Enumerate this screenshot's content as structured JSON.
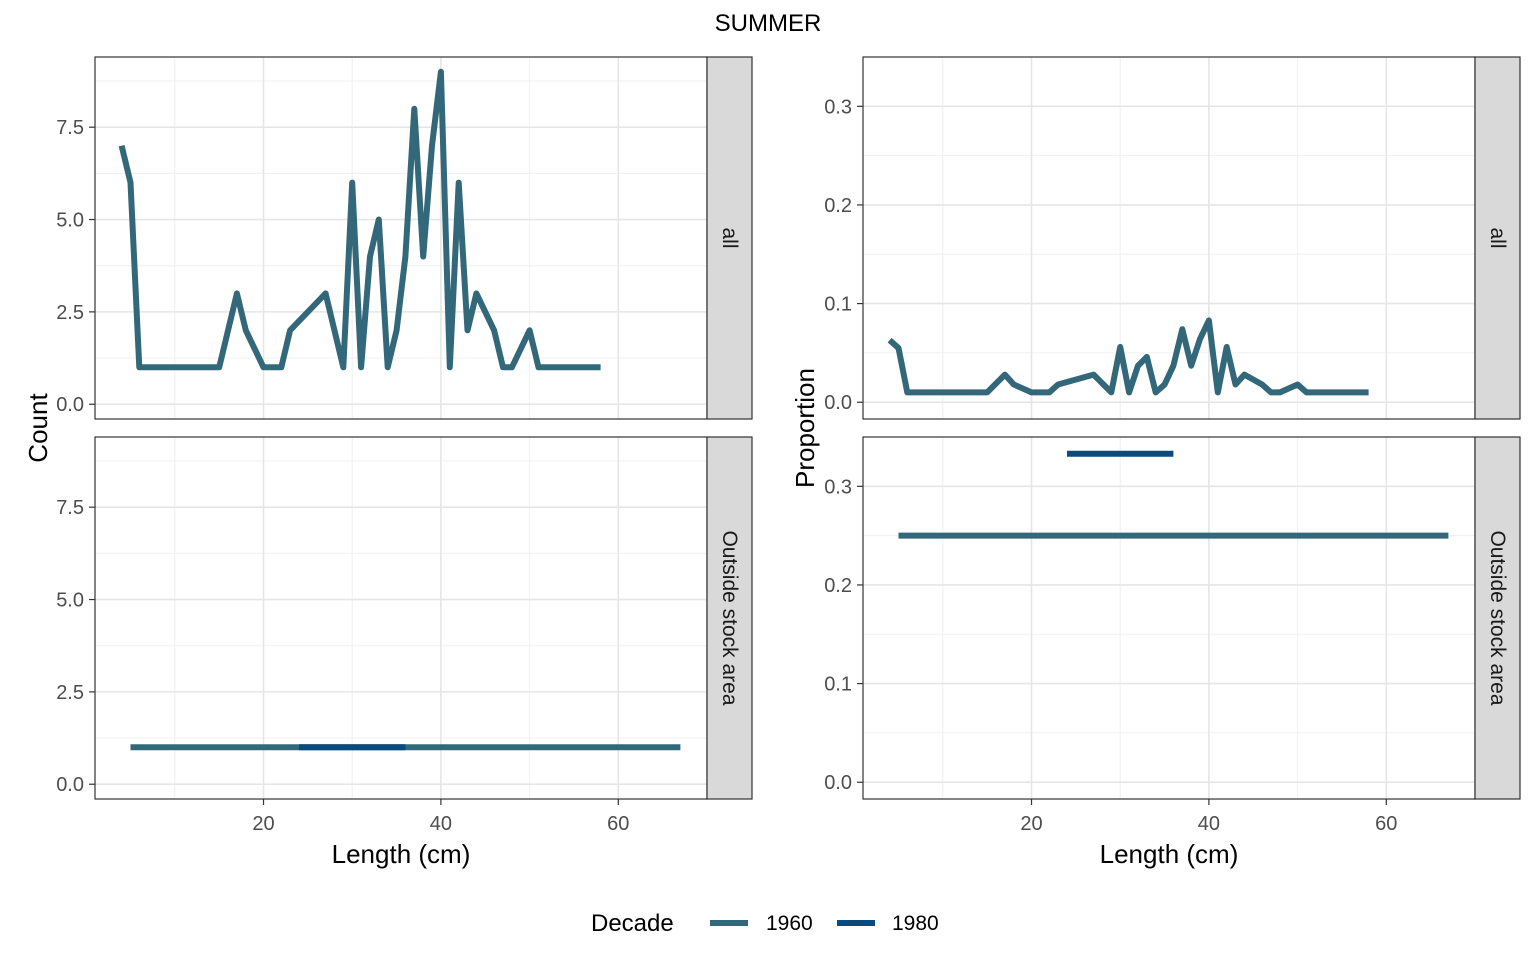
{
  "title": "SUMMER",
  "legend": {
    "title": "Decade",
    "entries": [
      {
        "label": "1960",
        "color": "#33687a"
      },
      {
        "label": "1980",
        "color": "#0b4a7c"
      }
    ]
  },
  "chart_data": [
    {
      "type": "line",
      "xlabel": "Length (cm)",
      "ylabel": "Count",
      "xlim": [
        1,
        70
      ],
      "ylim": [
        -0.4,
        9.4
      ],
      "xticks": [
        "20",
        "40",
        "60"
      ],
      "xtick_values": [
        20,
        40,
        60
      ],
      "yticks": [
        "0.0",
        "2.5",
        "5.0",
        "7.5"
      ],
      "ytick_values": [
        0,
        2.5,
        5,
        7.5
      ],
      "grid": true,
      "facets": [
        {
          "strip": "all",
          "series": [
            {
              "name": "1960",
              "x": [
                4,
                5,
                6,
                15,
                17,
                18,
                20,
                22,
                23,
                27,
                29,
                30,
                31,
                32,
                33,
                34,
                35,
                36,
                37,
                38,
                39,
                40,
                41,
                42,
                43,
                44,
                46,
                47,
                48,
                50,
                51,
                58
              ],
              "y": [
                7,
                6,
                1,
                1,
                3,
                2,
                1,
                1,
                2,
                3,
                1,
                6,
                1,
                4,
                5,
                1,
                2,
                4,
                8,
                4,
                7,
                9,
                1,
                6,
                2,
                3,
                2,
                1,
                1,
                2,
                1,
                1
              ]
            }
          ]
        },
        {
          "strip": "Outside stock area",
          "series": [
            {
              "name": "1960",
              "x": [
                5,
                67
              ],
              "y": [
                1,
                1
              ]
            },
            {
              "name": "1980",
              "x": [
                24,
                36
              ],
              "y": [
                1,
                1
              ]
            }
          ]
        }
      ]
    },
    {
      "type": "line",
      "xlabel": "Length (cm)",
      "ylabel": "Proportion",
      "xlim": [
        1,
        70
      ],
      "ylim": [
        -0.017,
        0.35
      ],
      "xticks": [
        "20",
        "40",
        "60"
      ],
      "xtick_values": [
        20,
        40,
        60
      ],
      "yticks": [
        "0.0",
        "0.1",
        "0.2",
        "0.3"
      ],
      "ytick_values": [
        0,
        0.1,
        0.2,
        0.3
      ],
      "grid": true,
      "facets": [
        {
          "strip": "all",
          "series": [
            {
              "name": "1960",
              "x": [
                4,
                5,
                6,
                15,
                17,
                18,
                20,
                22,
                23,
                27,
                29,
                30,
                31,
                32,
                33,
                34,
                35,
                36,
                37,
                38,
                39,
                40,
                41,
                42,
                43,
                44,
                46,
                47,
                48,
                50,
                51,
                58
              ],
              "y": [
                0.063,
                0.055,
                0.01,
                0.01,
                0.028,
                0.018,
                0.01,
                0.01,
                0.018,
                0.028,
                0.01,
                0.056,
                0.01,
                0.037,
                0.046,
                0.01,
                0.018,
                0.037,
                0.074,
                0.037,
                0.064,
                0.083,
                0.01,
                0.056,
                0.018,
                0.028,
                0.018,
                0.01,
                0.01,
                0.018,
                0.01,
                0.01
              ]
            }
          ]
        },
        {
          "strip": "Outside stock area",
          "series": [
            {
              "name": "1960",
              "x": [
                5,
                67
              ],
              "y": [
                0.25,
                0.25
              ]
            },
            {
              "name": "1980",
              "x": [
                24,
                36
              ],
              "y": [
                0.333,
                0.333
              ]
            }
          ]
        }
      ]
    }
  ]
}
